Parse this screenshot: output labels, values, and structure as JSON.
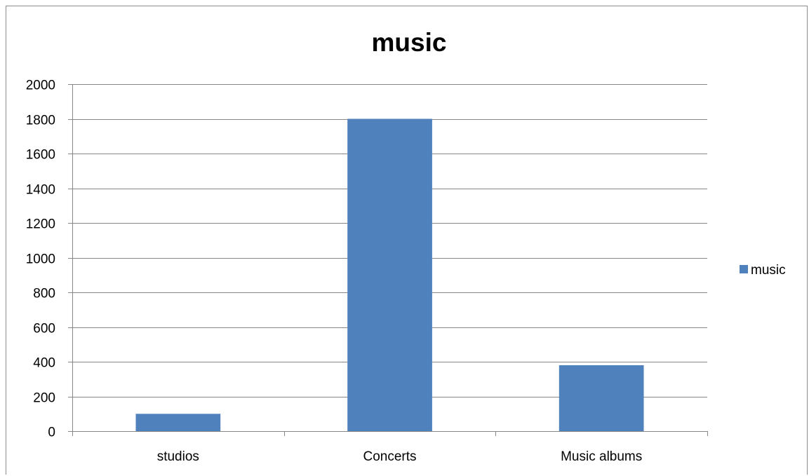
{
  "chart_data": {
    "type": "bar",
    "title": "music",
    "categories": [
      "studios",
      "Concerts",
      "Music albums"
    ],
    "series": [
      {
        "name": "music",
        "values": [
          100,
          1800,
          380
        ]
      }
    ],
    "ylim": [
      0,
      2000
    ],
    "yticks": [
      0,
      200,
      400,
      600,
      800,
      1000,
      1200,
      1400,
      1600,
      1800,
      2000
    ],
    "xlabel": "",
    "ylabel": "",
    "grid": true,
    "legend_position": "right",
    "colors": {
      "bar": "#4f81bd",
      "grid": "#878787",
      "axis": "#878787",
      "text": "#000000"
    }
  }
}
